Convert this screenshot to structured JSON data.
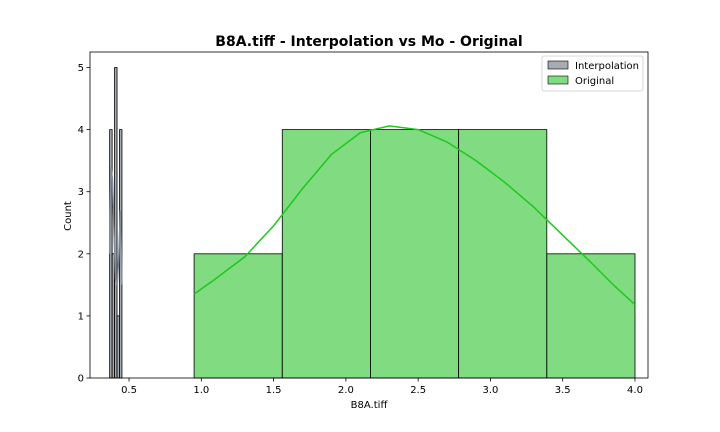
{
  "chart_data": {
    "type": "histogram",
    "title": "B8A.tiff - Interpolation vs Mo - Original",
    "xlabel": "B8A.tiff",
    "ylabel": "Count",
    "xlim": [
      0.23,
      4.09
    ],
    "ylim": [
      0,
      5.25
    ],
    "x_ticks": [
      0.5,
      1.0,
      1.5,
      2.0,
      2.5,
      3.0,
      3.5,
      4.0
    ],
    "x_tick_labels": [
      "0.5",
      "1.0",
      "1.5",
      "2.0",
      "2.5",
      "3.0",
      "3.5",
      "4.0"
    ],
    "y_ticks": [
      0,
      1,
      2,
      3,
      4,
      5
    ],
    "y_tick_labels": [
      "0",
      "1",
      "2",
      "3",
      "4",
      "5"
    ],
    "legend_position": "top-right",
    "grid": false,
    "series": [
      {
        "name": "Interpolation",
        "color": "#a0a8b0",
        "kde_color": "#7f8c99",
        "bins": [
          {
            "x0": 0.366,
            "x1": 0.383,
            "count": 4
          },
          {
            "x0": 0.383,
            "x1": 0.4,
            "count": 2
          },
          {
            "x0": 0.4,
            "x1": 0.417,
            "count": 5
          },
          {
            "x0": 0.417,
            "x1": 0.434,
            "count": 1
          },
          {
            "x0": 0.434,
            "x1": 0.451,
            "count": 4
          }
        ],
        "kde": [
          [
            0.366,
            2.0
          ],
          [
            0.375,
            3.4
          ],
          [
            0.385,
            3.2
          ],
          [
            0.397,
            2.3
          ],
          [
            0.407,
            1.6
          ],
          [
            0.418,
            1.5
          ],
          [
            0.43,
            2.0
          ],
          [
            0.44,
            2.7
          ],
          [
            0.451,
            1.5
          ]
        ]
      },
      {
        "name": "Original",
        "color": "#4ccc4c",
        "kde_color": "#1ec81e",
        "bins": [
          {
            "x0": 0.95,
            "x1": 1.56,
            "count": 2
          },
          {
            "x0": 1.56,
            "x1": 2.17,
            "count": 4
          },
          {
            "x0": 2.17,
            "x1": 2.78,
            "count": 4
          },
          {
            "x0": 2.78,
            "x1": 3.39,
            "count": 4
          },
          {
            "x0": 3.39,
            "x1": 4.0,
            "count": 2
          }
        ],
        "kde": [
          [
            0.95,
            1.35
          ],
          [
            1.1,
            1.6
          ],
          [
            1.3,
            1.95
          ],
          [
            1.5,
            2.45
          ],
          [
            1.7,
            3.05
          ],
          [
            1.9,
            3.6
          ],
          [
            2.1,
            3.95
          ],
          [
            2.3,
            4.06
          ],
          [
            2.5,
            4.0
          ],
          [
            2.7,
            3.8
          ],
          [
            2.9,
            3.5
          ],
          [
            3.1,
            3.15
          ],
          [
            3.3,
            2.75
          ],
          [
            3.5,
            2.3
          ],
          [
            3.7,
            1.85
          ],
          [
            3.85,
            1.5
          ],
          [
            4.0,
            1.18
          ]
        ]
      }
    ]
  }
}
